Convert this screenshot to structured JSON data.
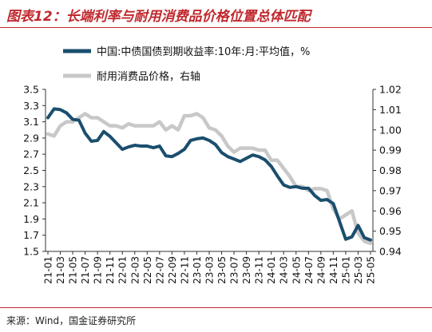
{
  "title": "图表12：长端利率与耐用消费品价格位置总体匹配",
  "source": "来源：Wind，国金证券研究所",
  "chart_data": {
    "type": "line",
    "categories": [
      "21-01",
      "21-02",
      "21-03",
      "21-04",
      "21-05",
      "21-06",
      "21-07",
      "21-08",
      "21-09",
      "21-10",
      "21-11",
      "21-12",
      "22-01",
      "22-02",
      "22-03",
      "22-04",
      "22-05",
      "22-06",
      "22-07",
      "22-08",
      "22-09",
      "22-10",
      "22-11",
      "22-12",
      "23-01",
      "23-02",
      "23-03",
      "23-04",
      "23-05",
      "23-06",
      "23-07",
      "23-08",
      "23-09",
      "23-10",
      "23-11",
      "23-12",
      "24-01",
      "24-02",
      "24-03",
      "24-04",
      "24-05",
      "24-06",
      "24-07",
      "24-08",
      "24-09",
      "24-10",
      "24-11",
      "24-12",
      "25-01",
      "25-02",
      "25-03",
      "25-04",
      "25-05"
    ],
    "tick_labels": [
      "21-01",
      "21-03",
      "21-05",
      "21-07",
      "21-09",
      "21-11",
      "22-01",
      "22-03",
      "22-05",
      "22-07",
      "22-09",
      "22-11",
      "23-01",
      "23-03",
      "23-05",
      "23-07",
      "23-09",
      "23-11",
      "24-01",
      "24-03",
      "24-05",
      "24-07",
      "24-09",
      "24-11",
      "25-01",
      "25-03",
      "25-05"
    ],
    "y_left": {
      "ylim": [
        1.5,
        3.5
      ],
      "ticks": [
        "1.5",
        "1.7",
        "1.9",
        "2.1",
        "2.3",
        "2.5",
        "2.7",
        "2.9",
        "3.1",
        "3.3",
        "3.5"
      ]
    },
    "y_right": {
      "ylim": [
        0.94,
        1.02
      ],
      "ticks": [
        "0.94",
        "0.95",
        "0.96",
        "0.97",
        "0.98",
        "0.99",
        "1.00",
        "1.01",
        "1.02"
      ]
    },
    "legend_position": "top",
    "grid": false,
    "series": [
      {
        "name": "中国:中债国债到期收益率:10年:月:平均值，%",
        "axis": "left",
        "color": "#1a4e6e",
        "values": [
          3.15,
          3.26,
          3.25,
          3.21,
          3.13,
          3.12,
          2.96,
          2.86,
          2.87,
          2.98,
          2.92,
          2.84,
          2.76,
          2.79,
          2.81,
          2.8,
          2.8,
          2.78,
          2.8,
          2.68,
          2.67,
          2.71,
          2.76,
          2.87,
          2.89,
          2.9,
          2.87,
          2.82,
          2.72,
          2.67,
          2.64,
          2.61,
          2.65,
          2.69,
          2.67,
          2.63,
          2.55,
          2.43,
          2.32,
          2.29,
          2.3,
          2.28,
          2.28,
          2.19,
          2.13,
          2.14,
          2.09,
          1.87,
          1.65,
          1.68,
          1.82,
          1.67,
          1.64
        ]
      },
      {
        "name": "耐用消费品价格，右轴",
        "axis": "right",
        "color": "#c8c8c8",
        "values": [
          0.998,
          0.997,
          1.002,
          1.004,
          1.004,
          1.006,
          1.008,
          1.006,
          1.006,
          1.004,
          1.002,
          1.002,
          1.001,
          1.003,
          1.002,
          1.002,
          1.002,
          1.002,
          1.004,
          1.0,
          1.002,
          1.0,
          1.007,
          1.007,
          1.008,
          1.006,
          1.001,
          1.0,
          0.997,
          0.992,
          0.989,
          0.991,
          0.991,
          0.991,
          0.99,
          0.99,
          0.985,
          0.985,
          0.981,
          0.977,
          0.972,
          0.972,
          0.97,
          0.971,
          0.971,
          0.97,
          0.961,
          0.956,
          0.958,
          0.96,
          0.949,
          0.945,
          0.944
        ]
      }
    ]
  }
}
